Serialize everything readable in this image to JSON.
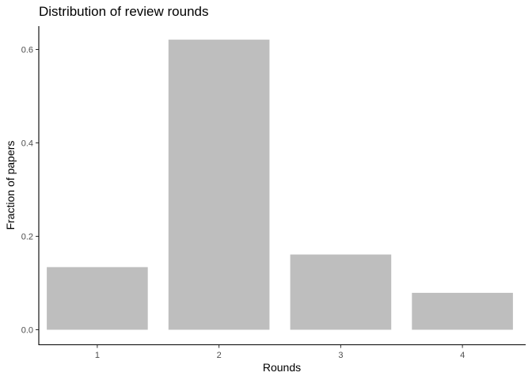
{
  "chart_data": {
    "type": "bar",
    "title": "Distribution of review rounds",
    "xlabel": "Rounds",
    "ylabel": "Fraction of papers",
    "categories": [
      "1",
      "2",
      "3",
      "4"
    ],
    "values": [
      0.134,
      0.621,
      0.161,
      0.079
    ],
    "ylim": [
      0,
      0.65
    ],
    "yticks": [
      0.0,
      0.2,
      0.4,
      0.6
    ],
    "ytick_labels": [
      "0.0",
      "0.2",
      "0.4",
      "0.6"
    ],
    "grid": false,
    "legend": "none",
    "bar_color": "#bebebe"
  }
}
